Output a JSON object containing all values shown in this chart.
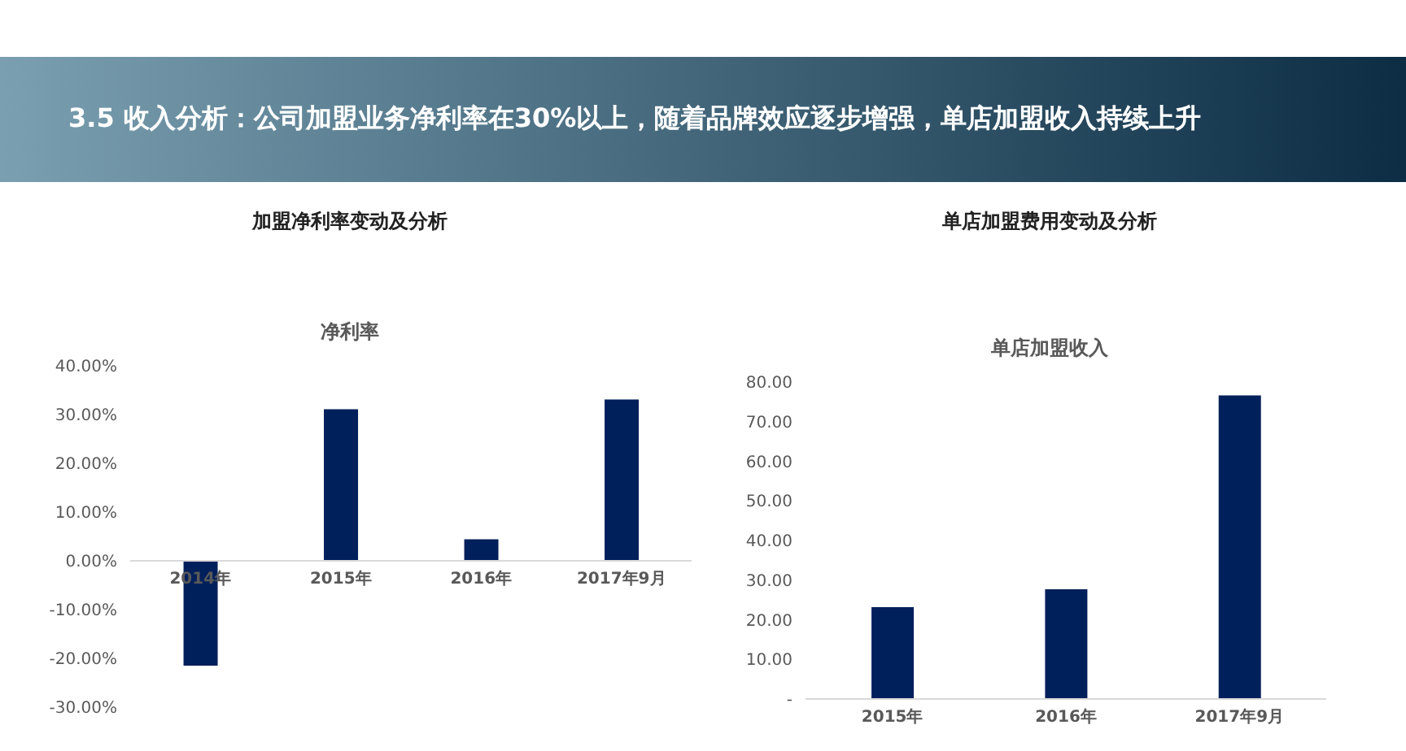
{
  "chart_data": [
    {
      "type": "bar",
      "title": "加盟净利率变动及分析",
      "subtitle": "净利率",
      "annotations": [
        "3.5  收入分析：公司加盟业务净利率在30%以上，随着品牌效应逐步增强，单店加盟收入持续上升"
      ],
      "categories": [
        "2014年",
        "2015年",
        "2016年",
        "2017年9月"
      ],
      "values": [
        -21.5,
        31.1,
        4.4,
        33.1
      ],
      "color": "#00205b",
      "ylim": [
        -30,
        40
      ],
      "yticks": [
        {
          "value": -30,
          "label": "-30.00%"
        },
        {
          "value": -20,
          "label": "-20.00%"
        },
        {
          "value": -10,
          "label": "-10.00%"
        },
        {
          "value": 0,
          "label": "0.00%"
        },
        {
          "value": 10,
          "label": "10.00%"
        },
        {
          "value": 20,
          "label": "20.00%"
        },
        {
          "value": 30,
          "label": "30.00%"
        },
        {
          "value": 40,
          "label": "40.00%"
        }
      ],
      "grid": false,
      "legend": false
    },
    {
      "type": "bar",
      "title": "单店加盟费用变动及分析",
      "subtitle": "单店加盟收入",
      "categories": [
        "2015年",
        "2016年",
        "2017年9月"
      ],
      "values": [
        23.2,
        27.7,
        76.6
      ],
      "color": "#00205b",
      "ylim": [
        0,
        80
      ],
      "yticks": [
        {
          "value": 0,
          "label": "-"
        },
        {
          "value": 10,
          "label": "10.00"
        },
        {
          "value": 20,
          "label": "20.00"
        },
        {
          "value": 30,
          "label": "30.00"
        },
        {
          "value": 40,
          "label": "40.00"
        },
        {
          "value": 50,
          "label": "50.00"
        },
        {
          "value": 60,
          "label": "60.00"
        },
        {
          "value": 70,
          "label": "70.00"
        },
        {
          "value": 80,
          "label": "80.00"
        }
      ],
      "grid": false,
      "legend": false
    }
  ]
}
